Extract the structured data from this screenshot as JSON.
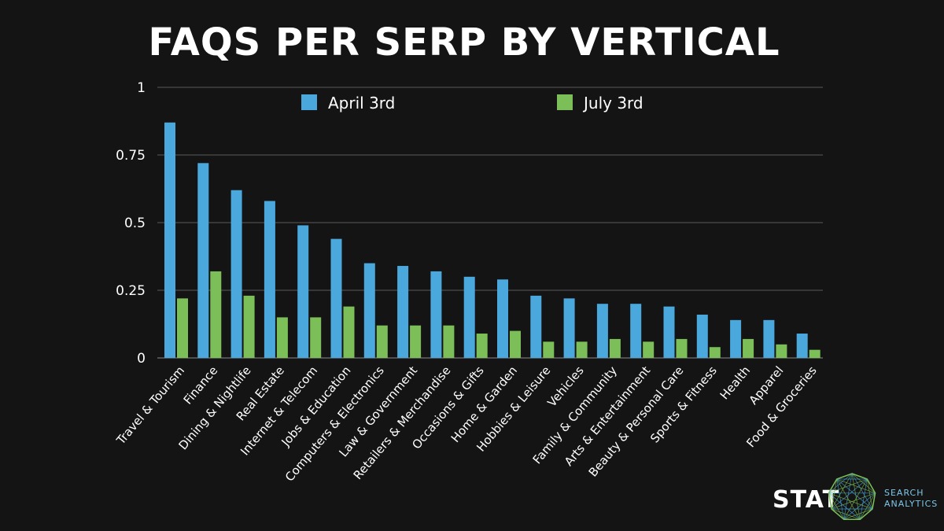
{
  "chart_data": {
    "type": "bar",
    "title": "FAQS PER SERP BY VERTICAL",
    "xlabel": "",
    "ylabel": "",
    "ylim": [
      0,
      1
    ],
    "yticks": [
      {
        "value": 0,
        "label": "0"
      },
      {
        "value": 0.25,
        "label": "0.25"
      },
      {
        "value": 0.5,
        "label": "0.5"
      },
      {
        "value": 0.75,
        "label": "0.75"
      },
      {
        "value": 1,
        "label": "1"
      }
    ],
    "grid": true,
    "legend_placement": "top",
    "categories": [
      "Travel & Tourism",
      "Finance",
      "Dining & Nightlife",
      "Real Estate",
      "Internet & Telecom",
      "Jobs & Education",
      "Computers & Electronics",
      "Law & Government",
      "Retailers & Merchandise",
      "Occasions & Gifts",
      "Home & Garden",
      "Hobbies & Leisure",
      "Vehicles",
      "Family & Community",
      "Arts & Entertainment",
      "Beauty & Personal Care",
      "Sports & Fitness",
      "Health",
      "Apparel",
      "Food & Groceries"
    ],
    "series": [
      {
        "name": "April 3rd",
        "color": "#4aa8dc",
        "values": [
          0.87,
          0.72,
          0.62,
          0.58,
          0.49,
          0.44,
          0.35,
          0.34,
          0.32,
          0.3,
          0.29,
          0.23,
          0.22,
          0.2,
          0.2,
          0.19,
          0.16,
          0.14,
          0.14,
          0.09
        ]
      },
      {
        "name": "July 3rd",
        "color": "#7cbf58",
        "values": [
          0.22,
          0.32,
          0.23,
          0.15,
          0.15,
          0.19,
          0.12,
          0.12,
          0.12,
          0.09,
          0.1,
          0.06,
          0.06,
          0.07,
          0.06,
          0.07,
          0.04,
          0.07,
          0.05,
          0.03
        ]
      }
    ]
  },
  "logo": {
    "brand": "STAT",
    "line1": "SEARCH",
    "line2": "ANALYTICS",
    "icon": "network-polygon-icon"
  }
}
